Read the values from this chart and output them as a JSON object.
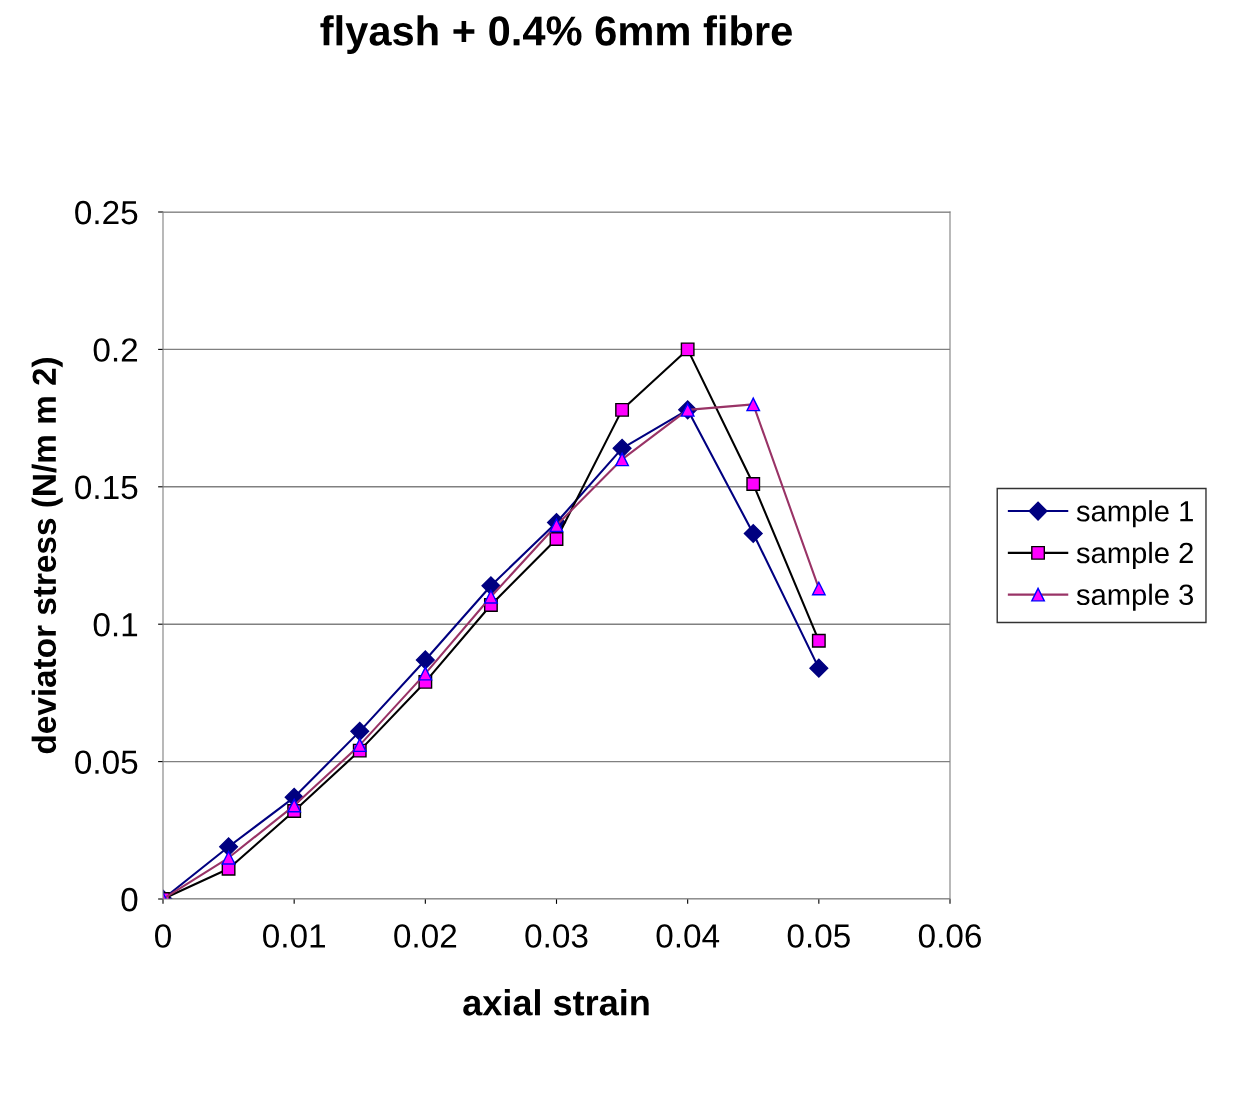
{
  "chart_data": {
    "type": "line",
    "title": "flyash + 0.4% 6mm fibre",
    "xlabel": "axial strain",
    "ylabel": "deviator stress (N/m m 2)",
    "x": [
      0,
      0.005,
      0.01,
      0.015,
      0.02,
      0.025,
      0.03,
      0.035,
      0.04,
      0.045,
      0.05
    ],
    "series": [
      {
        "name": "sample 1",
        "color": "#000080",
        "marker": "diamond",
        "values": [
          0,
          0.019,
          0.037,
          0.061,
          0.087,
          0.114,
          0.137,
          0.164,
          0.178,
          0.133,
          0.084
        ]
      },
      {
        "name": "sample 2",
        "color": "#000000",
        "marker": "square",
        "values": [
          0,
          0.011,
          0.032,
          0.054,
          0.079,
          0.107,
          0.131,
          0.178,
          0.2,
          0.151,
          0.094
        ]
      },
      {
        "name": "sample 3",
        "color": "#993366",
        "marker": "triangle",
        "values": [
          0,
          0.015,
          0.034,
          0.056,
          0.082,
          0.11,
          0.136,
          0.16,
          0.178,
          0.18,
          0.113
        ]
      }
    ],
    "xlim": [
      0,
      0.06
    ],
    "xticks": [
      0,
      0.01,
      0.02,
      0.03,
      0.04,
      0.05,
      0.06
    ],
    "ylim": [
      0,
      0.25
    ],
    "yticks": [
      0,
      0.05,
      0.1,
      0.15,
      0.2,
      0.25
    ],
    "grid": "y",
    "legend": "right",
    "line_style": "solid"
  }
}
